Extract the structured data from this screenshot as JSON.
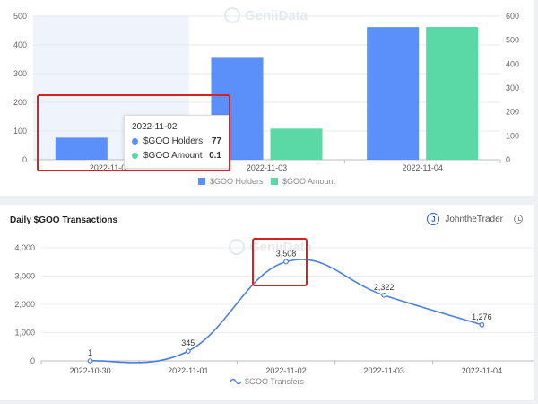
{
  "top_chart": {
    "left_ticks": [
      "500",
      "400",
      "300",
      "200",
      "100",
      "0"
    ],
    "right_ticks": [
      "600",
      "500",
      "400",
      "300",
      "200",
      "100",
      "0"
    ],
    "categories": [
      "2022-11-0...",
      "2022-11-03",
      "2022-11-04"
    ],
    "legend": [
      "$GOO Holders",
      "$GOO Amount"
    ],
    "colors": {
      "holders": "#5b8ff9",
      "amount": "#5ad8a6"
    }
  },
  "tooltip": {
    "date": "2022-11-02",
    "rows": [
      {
        "label": "$GOO Holders",
        "value": "77"
      },
      {
        "label": "$GOO Amount",
        "value": "0.1"
      }
    ]
  },
  "watermark": "GeniiData",
  "bottom_card": {
    "title": "Daily $GOO Transactions",
    "author_initial": "J",
    "author": "JohntheTrader"
  },
  "chart_data": [
    {
      "type": "bar",
      "categories": [
        "2022-11-02",
        "2022-11-03",
        "2022-11-04"
      ],
      "series": [
        {
          "name": "$GOO Holders",
          "axis": "left",
          "values": [
            77,
            355,
            462
          ]
        },
        {
          "name": "$GOO Amount",
          "axis": "right",
          "values": [
            0.1,
            130,
            555
          ]
        }
      ],
      "ylim_left": [
        0,
        500
      ],
      "ylim_right": [
        0,
        600
      ],
      "legend_position": "bottom"
    },
    {
      "type": "line",
      "x": [
        "2022-10-30",
        "2022-11-01",
        "2022-11-02",
        "2022-11-03",
        "2022-11-04"
      ],
      "series": [
        {
          "name": "$GOO Transfers",
          "values": [
            1,
            345,
            3508,
            2322,
            1276
          ]
        }
      ],
      "data_labels": [
        "1",
        "345",
        "3,508",
        "2,322",
        "1,276"
      ],
      "y_ticks": [
        "4,000",
        "3,000",
        "2,000",
        "1,000",
        "0"
      ],
      "ylim": [
        0,
        4000
      ],
      "legend_position": "bottom",
      "color": "#4a7fdf"
    }
  ]
}
